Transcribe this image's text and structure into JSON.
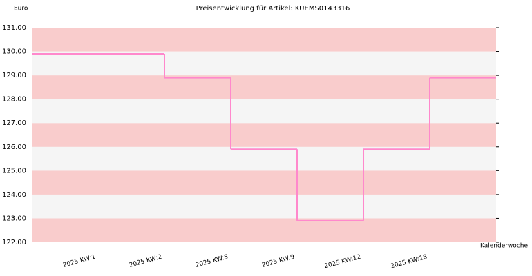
{
  "chart_data": {
    "type": "step",
    "title": "Preisentwicklung für Artikel: KUEMS0143316",
    "y_label": "Euro",
    "x_label": "Kalenderwoche",
    "categories": [
      "2025 KW:1",
      "2025 KW:2",
      "2025 KW:5",
      "2025 KW:9",
      "2025 KW:12",
      "2025 KW:18"
    ],
    "values": [
      129.9,
      128.9,
      125.9,
      122.9,
      125.9,
      128.9
    ],
    "color": "#ff88cc",
    "band_colors": [
      "#f5f5f5",
      "#f9cccc"
    ],
    "ylim": [
      122,
      131
    ],
    "yticks": [
      {
        "value": 122,
        "label": "122.00"
      },
      {
        "value": 123,
        "label": "123.00"
      },
      {
        "value": 124,
        "label": "124.00"
      },
      {
        "value": 125,
        "label": "125.00"
      },
      {
        "value": 126,
        "label": "126.00"
      },
      {
        "value": 127,
        "label": "127.00"
      },
      {
        "value": 128,
        "label": "128.00"
      },
      {
        "value": 129,
        "label": "129.00"
      },
      {
        "value": 130,
        "label": "130.00"
      },
      {
        "value": 131,
        "label": "131.00"
      }
    ]
  }
}
